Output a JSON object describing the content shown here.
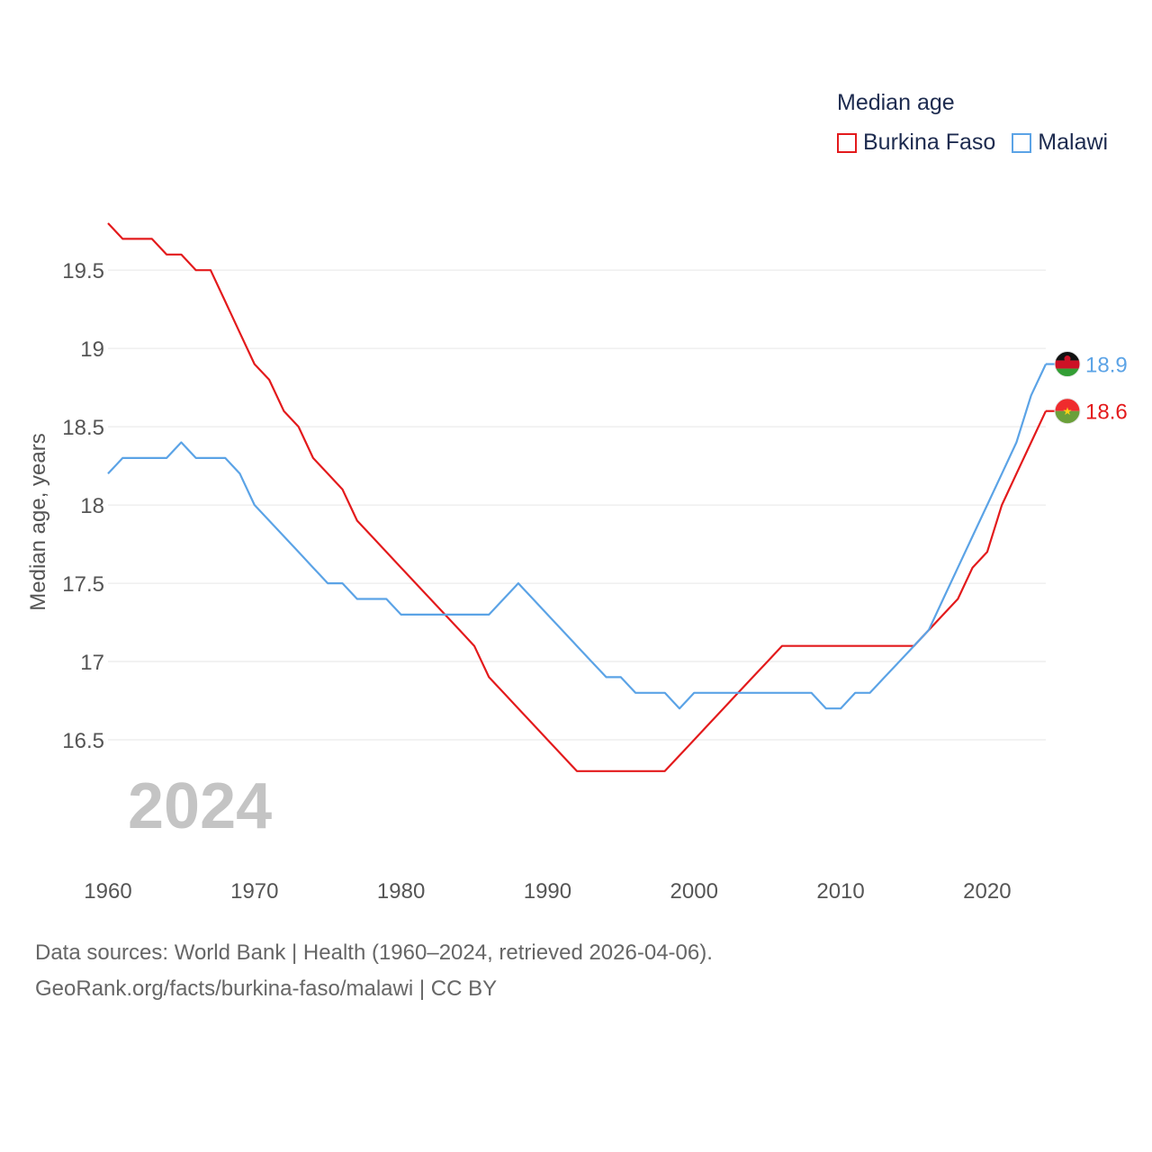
{
  "legend": {
    "title": "Median age",
    "items": [
      {
        "label": "Burkina Faso",
        "color": "#e31a1c"
      },
      {
        "label": "Malawi",
        "color": "#5ba3e6"
      }
    ]
  },
  "footer": {
    "line1": "Data sources: World Bank | Health (1960–2024, retrieved 2026-04-06).",
    "line2": "GeoRank.org/facts/burkina-faso/malawi | CC BY"
  },
  "chart_data": {
    "type": "line",
    "title": "Median age",
    "ylabel": "Median age, years",
    "xlabel": "",
    "watermark": "2024",
    "xlim": [
      1960,
      2024
    ],
    "ylim": [
      16.0,
      19.8
    ],
    "xticks": [
      1960,
      1970,
      1980,
      1990,
      2000,
      2010,
      2020
    ],
    "yticks": [
      16.5,
      17,
      17.5,
      18,
      18.5,
      19,
      19.5
    ],
    "series": [
      {
        "name": "Burkina Faso",
        "color": "#e31a1c",
        "end_label": "18.6",
        "flag": "burkina-faso",
        "x": [
          1960,
          1961,
          1962,
          1963,
          1964,
          1965,
          1966,
          1967,
          1968,
          1969,
          1970,
          1971,
          1972,
          1973,
          1974,
          1975,
          1976,
          1977,
          1978,
          1979,
          1980,
          1981,
          1982,
          1983,
          1984,
          1985,
          1986,
          1987,
          1988,
          1989,
          1990,
          1991,
          1992,
          1993,
          1994,
          1995,
          1996,
          1997,
          1998,
          1999,
          2000,
          2001,
          2002,
          2003,
          2004,
          2005,
          2006,
          2007,
          2008,
          2009,
          2010,
          2011,
          2012,
          2013,
          2014,
          2015,
          2016,
          2017,
          2018,
          2019,
          2020,
          2021,
          2022,
          2023,
          2024
        ],
        "y": [
          19.8,
          19.7,
          19.7,
          19.7,
          19.6,
          19.6,
          19.5,
          19.5,
          19.3,
          19.1,
          18.9,
          18.8,
          18.6,
          18.5,
          18.3,
          18.2,
          18.1,
          17.9,
          17.8,
          17.7,
          17.6,
          17.5,
          17.4,
          17.3,
          17.2,
          17.1,
          16.9,
          16.8,
          16.7,
          16.6,
          16.5,
          16.4,
          16.3,
          16.3,
          16.3,
          16.3,
          16.3,
          16.3,
          16.3,
          16.4,
          16.5,
          16.6,
          16.7,
          16.8,
          16.9,
          17.0,
          17.1,
          17.1,
          17.1,
          17.1,
          17.1,
          17.1,
          17.1,
          17.1,
          17.1,
          17.1,
          17.2,
          17.3,
          17.4,
          17.6,
          17.7,
          18.0,
          18.2,
          18.4,
          18.6
        ]
      },
      {
        "name": "Malawi",
        "color": "#5ba3e6",
        "end_label": "18.9",
        "flag": "malawi",
        "x": [
          1960,
          1961,
          1962,
          1963,
          1964,
          1965,
          1966,
          1967,
          1968,
          1969,
          1970,
          1971,
          1972,
          1973,
          1974,
          1975,
          1976,
          1977,
          1978,
          1979,
          1980,
          1981,
          1982,
          1983,
          1984,
          1985,
          1986,
          1987,
          1988,
          1989,
          1990,
          1991,
          1992,
          1993,
          1994,
          1995,
          1996,
          1997,
          1998,
          1999,
          2000,
          2001,
          2002,
          2003,
          2004,
          2005,
          2006,
          2007,
          2008,
          2009,
          2010,
          2011,
          2012,
          2013,
          2014,
          2015,
          2016,
          2017,
          2018,
          2019,
          2020,
          2021,
          2022,
          2023,
          2024
        ],
        "y": [
          18.2,
          18.3,
          18.3,
          18.3,
          18.3,
          18.4,
          18.3,
          18.3,
          18.3,
          18.2,
          18.0,
          17.9,
          17.8,
          17.7,
          17.6,
          17.5,
          17.5,
          17.4,
          17.4,
          17.4,
          17.3,
          17.3,
          17.3,
          17.3,
          17.3,
          17.3,
          17.3,
          17.4,
          17.5,
          17.4,
          17.3,
          17.2,
          17.1,
          17.0,
          16.9,
          16.9,
          16.8,
          16.8,
          16.8,
          16.7,
          16.8,
          16.8,
          16.8,
          16.8,
          16.8,
          16.8,
          16.8,
          16.8,
          16.8,
          16.7,
          16.7,
          16.8,
          16.8,
          16.9,
          17.0,
          17.1,
          17.2,
          17.4,
          17.6,
          17.8,
          18.0,
          18.2,
          18.4,
          18.7,
          18.9
        ]
      }
    ]
  }
}
